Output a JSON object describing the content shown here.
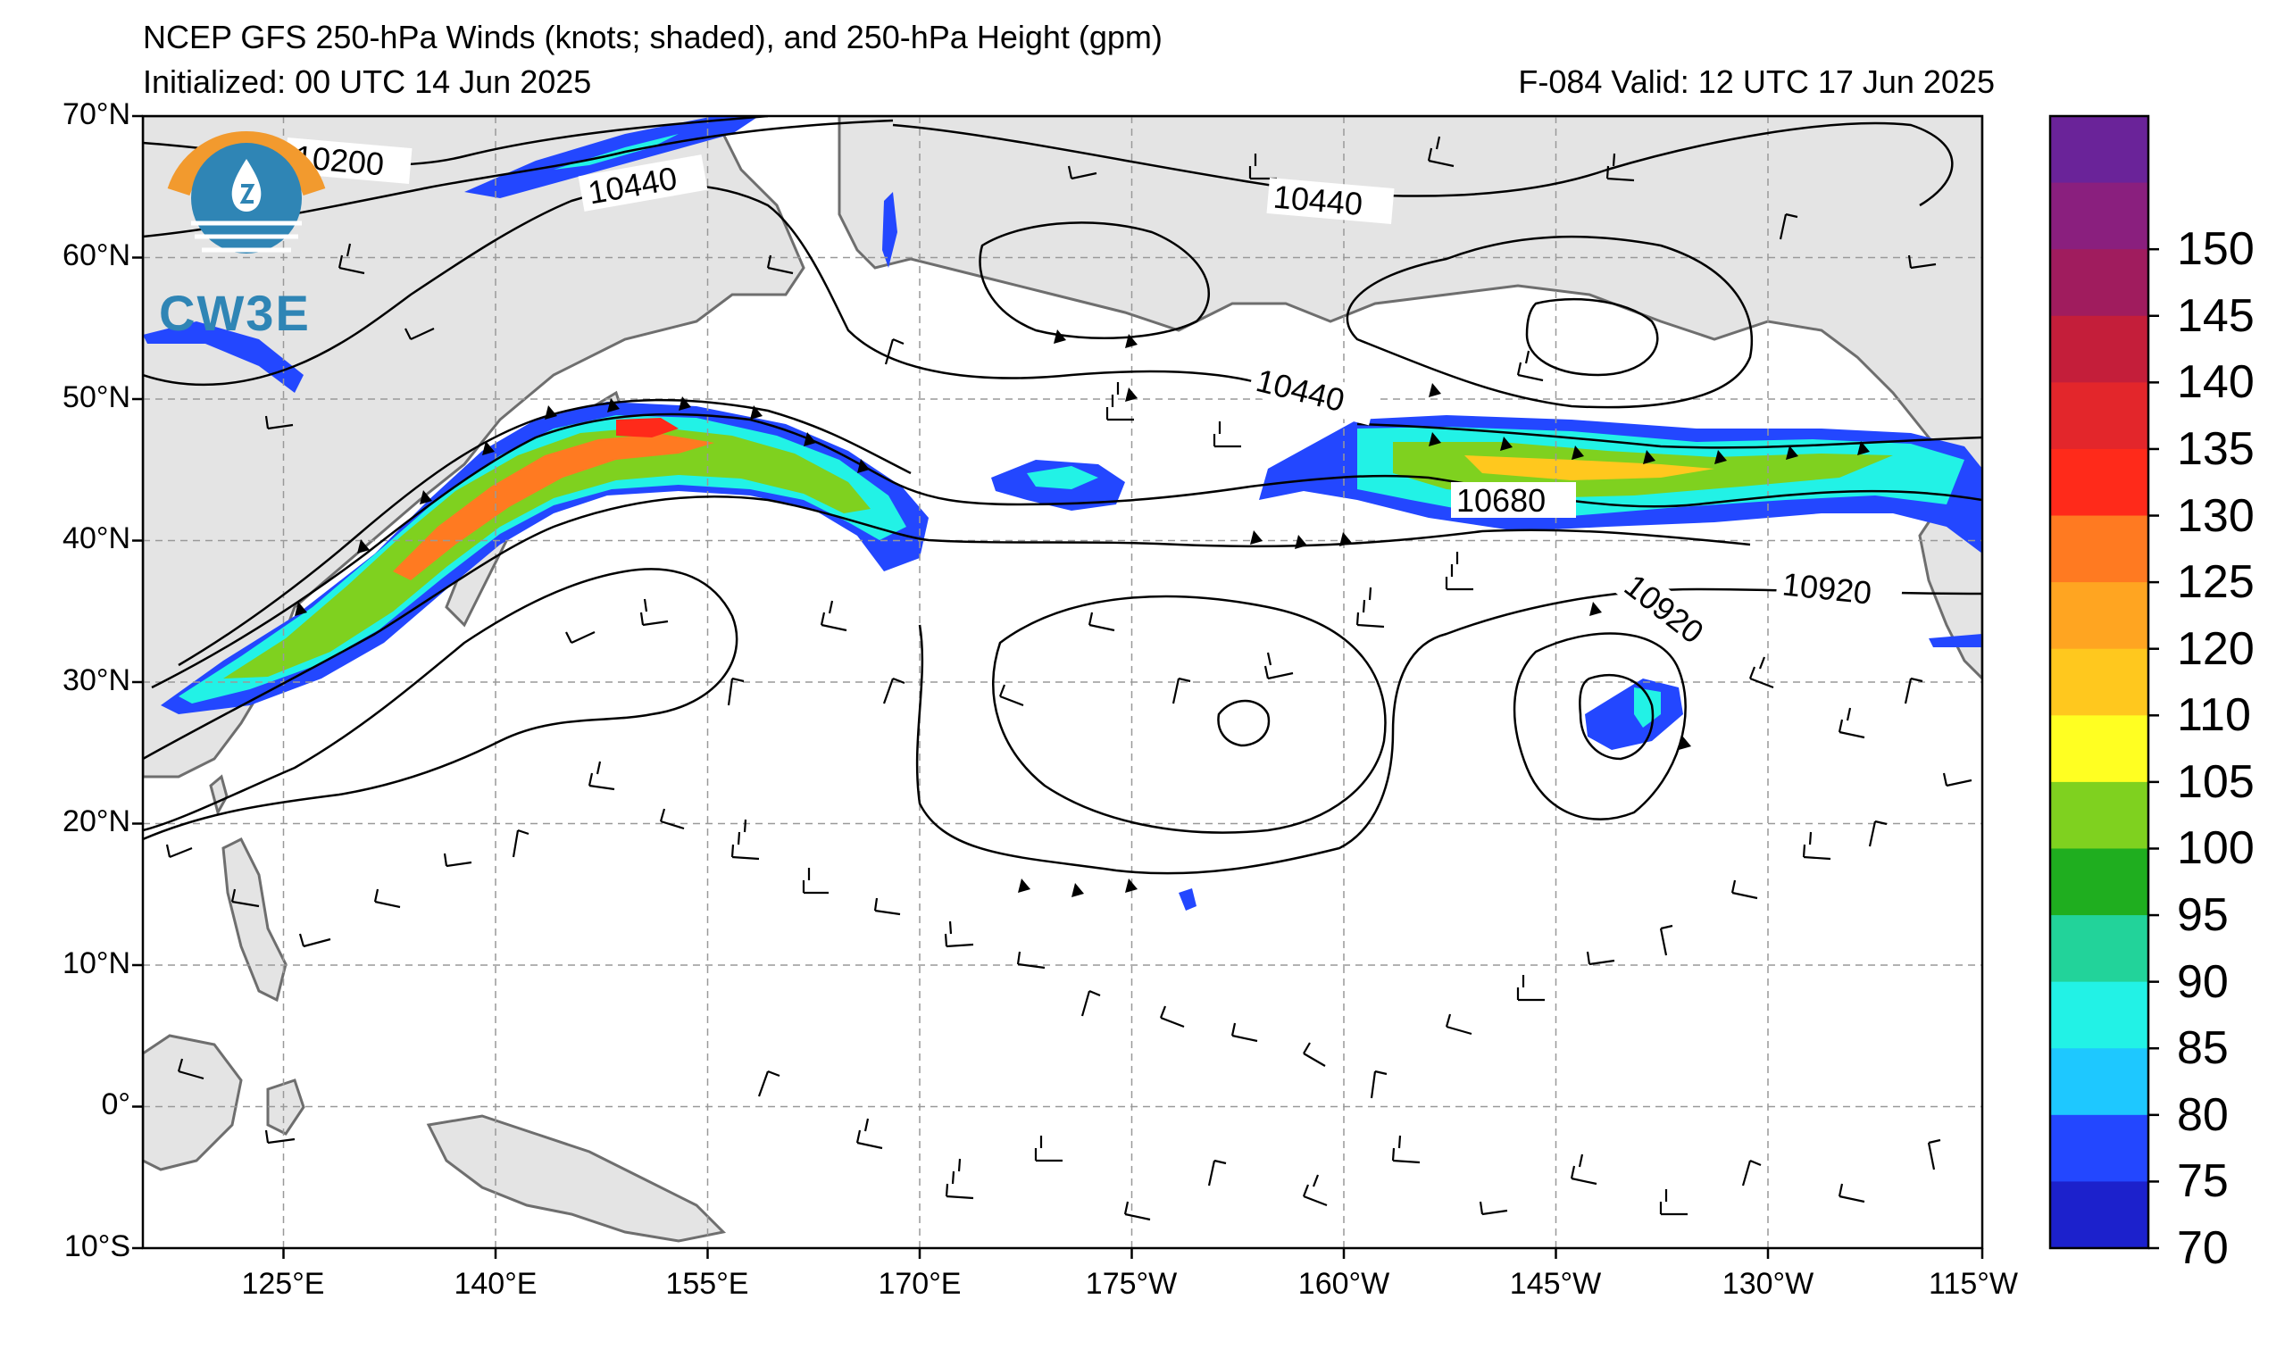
{
  "header": {
    "title": "NCEP GFS 250-hPa Winds (knots; shaded), and 250-hPa Height (gpm)",
    "initialized": "Initialized: 00 UTC 14 Jun 2025",
    "valid": "F-084  Valid: 12 UTC 17 Jun 2025"
  },
  "map": {
    "lat_labels": [
      "70°N",
      "60°N",
      "50°N",
      "40°N",
      "30°N",
      "20°N",
      "10°N",
      "0°",
      "10°S"
    ],
    "lon_labels": [
      "125°E",
      "140°E",
      "155°E",
      "170°E",
      "175°W",
      "160°W",
      "145°W",
      "130°W",
      "115°W"
    ],
    "contour_labels": [
      "10200",
      "10440",
      "10440",
      "10440",
      "10680",
      "10920",
      "10920"
    ],
    "land_color": "#e4e4e4",
    "coast_color": "#6e6e6e",
    "grid_color": "#999999"
  },
  "colorbar": {
    "labels": [
      "150",
      "145",
      "140",
      "135",
      "130",
      "125",
      "120",
      "110",
      "105",
      "100",
      "95",
      "90",
      "85",
      "80",
      "75",
      "70"
    ],
    "colors": [
      "#6a2399",
      "#8a1f7e",
      "#a01c5e",
      "#c41e3a",
      "#e3262b",
      "#ff2a1a",
      "#ff7a21",
      "#ffa521",
      "#ffc81e",
      "#ffff22",
      "#7fd11f",
      "#1fae1f",
      "#22d39a",
      "#22f2e6",
      "#1ec8ff",
      "#2347ff",
      "#1c21cc"
    ]
  },
  "logo": {
    "text": "CW3E",
    "icon": "cw3e-logo-icon"
  }
}
